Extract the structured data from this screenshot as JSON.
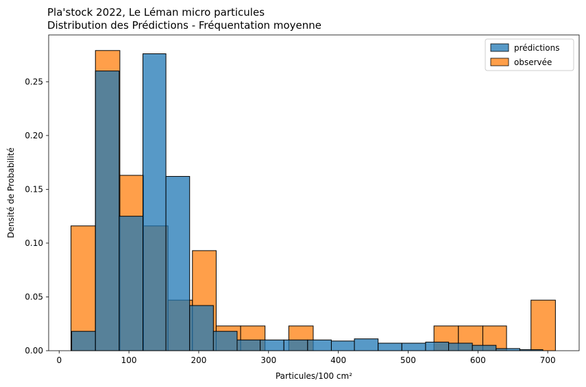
{
  "chart_data": {
    "type": "bar",
    "title_line1": "Pla'stock 2022, Le Léman micro particules",
    "title_line2": "Distribution des Prédictions - Fréquentation moyenne",
    "xlabel": "Particules/100 cm²",
    "ylabel": "Densité de Probabilité",
    "xlim": [
      -15,
      745
    ],
    "ylim": [
      0,
      0.2935
    ],
    "xticks": [
      0,
      100,
      200,
      300,
      400,
      500,
      600,
      700
    ],
    "yticks": [
      0.0,
      0.05,
      0.1,
      0.15,
      0.2,
      0.25
    ],
    "ytick_labels": [
      "0.00",
      "0.05",
      "0.10",
      "0.15",
      "0.20",
      "0.25"
    ],
    "grid": false,
    "legend_position": "top-right",
    "series": [
      {
        "name": "observée",
        "color": "#ff7f0e",
        "bins": [
          {
            "x0": 17,
            "x1": 52,
            "y": 0.116
          },
          {
            "x0": 52,
            "x1": 87,
            "y": 0.279
          },
          {
            "x0": 87,
            "x1": 121,
            "y": 0.163
          },
          {
            "x0": 121,
            "x1": 156,
            "y": 0.116
          },
          {
            "x0": 156,
            "x1": 191,
            "y": 0.047
          },
          {
            "x0": 191,
            "x1": 225,
            "y": 0.093
          },
          {
            "x0": 225,
            "x1": 260,
            "y": 0.023
          },
          {
            "x0": 260,
            "x1": 295,
            "y": 0.023
          },
          {
            "x0": 329,
            "x1": 364,
            "y": 0.023
          },
          {
            "x0": 537,
            "x1": 572,
            "y": 0.023
          },
          {
            "x0": 572,
            "x1": 607,
            "y": 0.023
          },
          {
            "x0": 607,
            "x1": 641,
            "y": 0.023
          },
          {
            "x0": 676,
            "x1": 711,
            "y": 0.047
          }
        ]
      },
      {
        "name": "prédictions",
        "color": "#1f77b4",
        "bins": [
          {
            "x0": 18,
            "x1": 52,
            "y": 0.018
          },
          {
            "x0": 52,
            "x1": 86,
            "y": 0.26
          },
          {
            "x0": 86,
            "x1": 120,
            "y": 0.125
          },
          {
            "x0": 120,
            "x1": 153,
            "y": 0.276
          },
          {
            "x0": 153,
            "x1": 187,
            "y": 0.162
          },
          {
            "x0": 187,
            "x1": 221,
            "y": 0.042
          },
          {
            "x0": 221,
            "x1": 255,
            "y": 0.018
          },
          {
            "x0": 255,
            "x1": 288,
            "y": 0.01
          },
          {
            "x0": 288,
            "x1": 322,
            "y": 0.01
          },
          {
            "x0": 322,
            "x1": 356,
            "y": 0.01
          },
          {
            "x0": 356,
            "x1": 390,
            "y": 0.01
          },
          {
            "x0": 390,
            "x1": 423,
            "y": 0.009
          },
          {
            "x0": 423,
            "x1": 457,
            "y": 0.011
          },
          {
            "x0": 457,
            "x1": 491,
            "y": 0.007
          },
          {
            "x0": 491,
            "x1": 525,
            "y": 0.007
          },
          {
            "x0": 525,
            "x1": 558,
            "y": 0.008
          },
          {
            "x0": 558,
            "x1": 592,
            "y": 0.007
          },
          {
            "x0": 592,
            "x1": 626,
            "y": 0.005
          },
          {
            "x0": 626,
            "x1": 660,
            "y": 0.002
          },
          {
            "x0": 660,
            "x1": 693,
            "y": 0.001
          }
        ]
      }
    ]
  }
}
